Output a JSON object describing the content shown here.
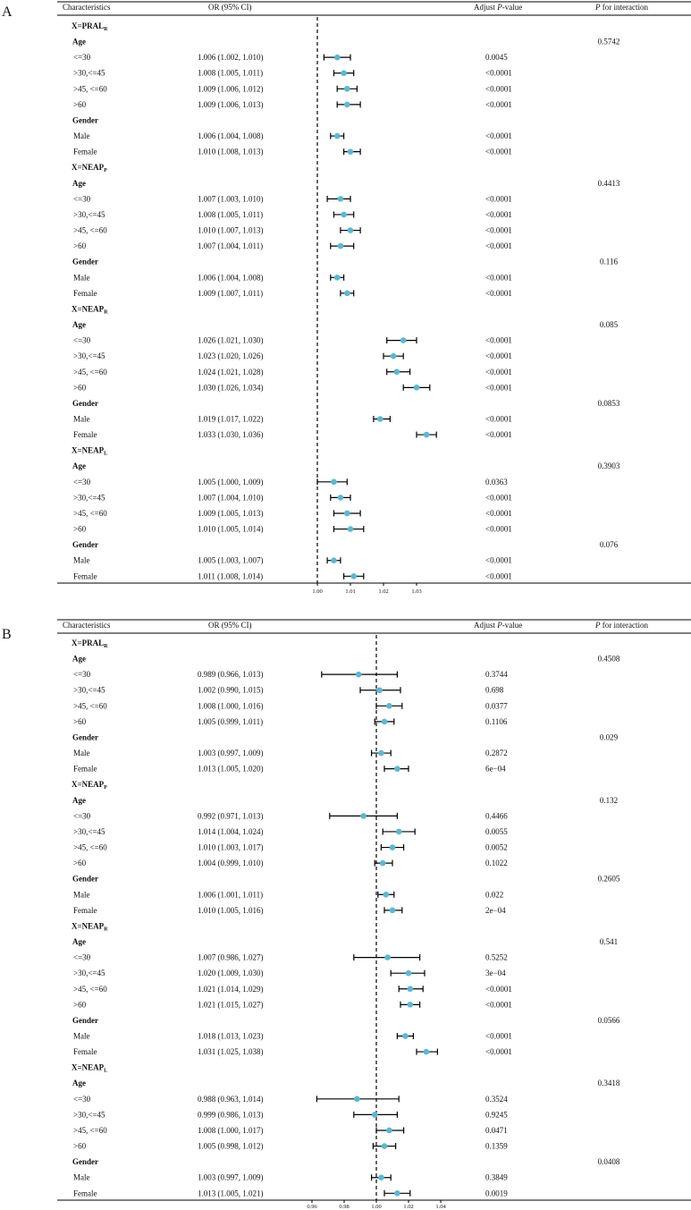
{
  "panels": [
    {
      "label": "A",
      "headers": {
        "characteristics": "Characteristics",
        "or": "OR (95% CI)",
        "pvalue_pre": "Adjust ",
        "pvalue_italic": "P",
        "pvalue_post": "-value",
        "interaction_italic": "P",
        "interaction_post": " for interaction"
      },
      "ticks": [
        "1.00",
        "1.01",
        "1.02",
        "1.03"
      ],
      "rows": [
        {
          "type": "group",
          "base": "X=PRAL",
          "sub": "R"
        },
        {
          "type": "cat",
          "label": "Age",
          "p_int": "0.5742"
        },
        {
          "type": "item",
          "label": "<=30",
          "or": 1.006,
          "lo": 1.002,
          "hi": 1.01,
          "text": "1.006 (1.002, 1.010)",
          "p": "0.0045"
        },
        {
          "type": "item",
          "label": ">30,<=45",
          "or": 1.008,
          "lo": 1.005,
          "hi": 1.011,
          "text": "1.008 (1.005, 1.011)",
          "p": "<0.0001"
        },
        {
          "type": "item",
          "label": ">45, <=60",
          "or": 1.009,
          "lo": 1.006,
          "hi": 1.012,
          "text": "1.009 (1.006, 1.012)",
          "p": "<0.0001"
        },
        {
          "type": "item",
          "label": ">60",
          "or": 1.009,
          "lo": 1.006,
          "hi": 1.013,
          "text": "1.009 (1.006, 1.013)",
          "p": "<0.0001"
        },
        {
          "type": "cat",
          "label": "Gender",
          "p_int": ""
        },
        {
          "type": "item",
          "label": "Male",
          "or": 1.006,
          "lo": 1.004,
          "hi": 1.008,
          "text": "1.006 (1.004, 1.008)",
          "p": "<0.0001"
        },
        {
          "type": "item",
          "label": "Female",
          "or": 1.01,
          "lo": 1.008,
          "hi": 1.013,
          "text": "1.010 (1.008, 1.013)",
          "p": "<0.0001"
        },
        {
          "type": "group",
          "base": "X=NEAP",
          "sub": "P"
        },
        {
          "type": "cat",
          "label": "Age",
          "p_int": "0.4413"
        },
        {
          "type": "item",
          "label": "<=30",
          "or": 1.007,
          "lo": 1.003,
          "hi": 1.01,
          "text": "1.007 (1.003, 1.010)",
          "p": "<0.0001"
        },
        {
          "type": "item",
          "label": ">30,<=45",
          "or": 1.008,
          "lo": 1.005,
          "hi": 1.011,
          "text": "1.008 (1.005, 1.011)",
          "p": "<0.0001"
        },
        {
          "type": "item",
          "label": ">45, <=60",
          "or": 1.01,
          "lo": 1.007,
          "hi": 1.013,
          "text": "1.010 (1.007, 1.013)",
          "p": "<0.0001"
        },
        {
          "type": "item",
          "label": ">60",
          "or": 1.007,
          "lo": 1.004,
          "hi": 1.011,
          "text": "1.007 (1.004, 1.011)",
          "p": "<0.0001"
        },
        {
          "type": "cat",
          "label": "Gender",
          "p_int": "0.116"
        },
        {
          "type": "item",
          "label": "Male",
          "or": 1.006,
          "lo": 1.004,
          "hi": 1.008,
          "text": "1.006 (1.004, 1.008)",
          "p": "<0.0001"
        },
        {
          "type": "item",
          "label": "Female",
          "or": 1.009,
          "lo": 1.007,
          "hi": 1.011,
          "text": "1.009 (1.007, 1.011)",
          "p": "<0.0001"
        },
        {
          "type": "group",
          "base": "X=NEAP",
          "sub": "R"
        },
        {
          "type": "cat",
          "label": "Age",
          "p_int": "0.085"
        },
        {
          "type": "item",
          "label": "<=30",
          "or": 1.026,
          "lo": 1.021,
          "hi": 1.03,
          "text": "1.026 (1.021, 1.030)",
          "p": "<0.0001"
        },
        {
          "type": "item",
          "label": ">30,<=45",
          "or": 1.023,
          "lo": 1.02,
          "hi": 1.026,
          "text": "1.023 (1.020, 1.026)",
          "p": "<0.0001"
        },
        {
          "type": "item",
          "label": ">45, <=60",
          "or": 1.024,
          "lo": 1.021,
          "hi": 1.028,
          "text": "1.024 (1.021, 1.028)",
          "p": "<0.0001"
        },
        {
          "type": "item",
          "label": ">60",
          "or": 1.03,
          "lo": 1.026,
          "hi": 1.034,
          "text": "1.030 (1.026, 1.034)",
          "p": "<0.0001"
        },
        {
          "type": "cat",
          "label": "Gender",
          "p_int": "0.0853"
        },
        {
          "type": "item",
          "label": "Male",
          "or": 1.019,
          "lo": 1.017,
          "hi": 1.022,
          "text": "1.019 (1.017, 1.022)",
          "p": "<0.0001"
        },
        {
          "type": "item",
          "label": "Female",
          "or": 1.033,
          "lo": 1.03,
          "hi": 1.036,
          "text": "1.033 (1.030, 1.036)",
          "p": "<0.0001"
        },
        {
          "type": "group",
          "base": "X=NEAP",
          "sub": "L"
        },
        {
          "type": "cat",
          "label": "Age",
          "p_int": "0.3903"
        },
        {
          "type": "item",
          "label": "<=30",
          "or": 1.005,
          "lo": 1.0,
          "hi": 1.009,
          "text": "1.005 (1.000, 1.009)",
          "p": "0.0363"
        },
        {
          "type": "item",
          "label": ">30,<=45",
          "or": 1.007,
          "lo": 1.004,
          "hi": 1.01,
          "text": "1.007 (1.004, 1.010)",
          "p": "<0.0001"
        },
        {
          "type": "item",
          "label": ">45, <=60",
          "or": 1.009,
          "lo": 1.005,
          "hi": 1.013,
          "text": "1.009 (1.005, 1.013)",
          "p": "<0.0001"
        },
        {
          "type": "item",
          "label": ">60",
          "or": 1.01,
          "lo": 1.005,
          "hi": 1.014,
          "text": "1.010 (1.005, 1.014)",
          "p": "<0.0001"
        },
        {
          "type": "cat",
          "label": "Gender",
          "p_int": "0.076"
        },
        {
          "type": "item",
          "label": "Male",
          "or": 1.005,
          "lo": 1.003,
          "hi": 1.007,
          "text": "1.005 (1.003, 1.007)",
          "p": "<0.0001"
        },
        {
          "type": "item",
          "label": "Female",
          "or": 1.011,
          "lo": 1.008,
          "hi": 1.014,
          "text": "1.011 (1.008, 1.014)",
          "p": "<0.0001"
        }
      ]
    },
    {
      "label": "B",
      "headers": {
        "characteristics": "Characteristics",
        "or": "OR (95% CI)",
        "pvalue_pre": "Adjust ",
        "pvalue_italic": "P",
        "pvalue_post": "-value",
        "interaction_italic": "P",
        "interaction_post": " for interaction"
      },
      "ticks": [
        "0.96",
        "0.98",
        "1.00",
        "1.02",
        "1.04"
      ],
      "rows": [
        {
          "type": "group",
          "base": "X=PRAL",
          "sub": "R"
        },
        {
          "type": "cat",
          "label": "Age",
          "p_int": "0.4508"
        },
        {
          "type": "item",
          "label": "<=30",
          "or": 0.989,
          "lo": 0.966,
          "hi": 1.013,
          "text": "0.989 (0.966, 1.013)",
          "p": "0.3744"
        },
        {
          "type": "item",
          "label": ">30,<=45",
          "or": 1.002,
          "lo": 0.99,
          "hi": 1.015,
          "text": "1.002 (0.990, 1.015)",
          "p": "0.698"
        },
        {
          "type": "item",
          "label": ">45, <=60",
          "or": 1.008,
          "lo": 1.0,
          "hi": 1.016,
          "text": "1.008 (1.000, 1.016)",
          "p": "0.0377"
        },
        {
          "type": "item",
          "label": ">60",
          "or": 1.005,
          "lo": 0.999,
          "hi": 1.011,
          "text": "1.005 (0.999, 1.011)",
          "p": "0.1106"
        },
        {
          "type": "cat",
          "label": "Gender",
          "p_int": "0.029"
        },
        {
          "type": "item",
          "label": "Male",
          "or": 1.003,
          "lo": 0.997,
          "hi": 1.009,
          "text": "1.003 (0.997, 1.009)",
          "p": "0.2872"
        },
        {
          "type": "item",
          "label": "Female",
          "or": 1.013,
          "lo": 1.005,
          "hi": 1.02,
          "text": "1.013 (1.005, 1.020)",
          "p": "6e−04"
        },
        {
          "type": "group",
          "base": "X=NEAP",
          "sub": "P"
        },
        {
          "type": "cat",
          "label": "Age",
          "p_int": "0.132"
        },
        {
          "type": "item",
          "label": "<=30",
          "or": 0.992,
          "lo": 0.971,
          "hi": 1.013,
          "text": "0.992 (0.971, 1.013)",
          "p": "0.4466"
        },
        {
          "type": "item",
          "label": ">30,<=45",
          "or": 1.014,
          "lo": 1.004,
          "hi": 1.024,
          "text": "1.014 (1.004, 1.024)",
          "p": "0.0055"
        },
        {
          "type": "item",
          "label": ">45, <=60",
          "or": 1.01,
          "lo": 1.003,
          "hi": 1.017,
          "text": "1.010 (1.003, 1.017)",
          "p": "0.0052"
        },
        {
          "type": "item",
          "label": ">60",
          "or": 1.004,
          "lo": 0.999,
          "hi": 1.01,
          "text": "1.004 (0.999, 1.010)",
          "p": "0.1022"
        },
        {
          "type": "cat",
          "label": "Gender",
          "p_int": "0.2605"
        },
        {
          "type": "item",
          "label": "Male",
          "or": 1.006,
          "lo": 1.001,
          "hi": 1.011,
          "text": "1.006 (1.001, 1.011)",
          "p": "0.022"
        },
        {
          "type": "item",
          "label": "Female",
          "or": 1.01,
          "lo": 1.005,
          "hi": 1.016,
          "text": "1.010 (1.005, 1.016)",
          "p": "2e−04"
        },
        {
          "type": "group",
          "base": "X=NEAP",
          "sub": "R"
        },
        {
          "type": "cat",
          "label": "Age",
          "p_int": "0.541"
        },
        {
          "type": "item",
          "label": "<=30",
          "or": 1.007,
          "lo": 0.986,
          "hi": 1.027,
          "text": "1.007 (0.986, 1.027)",
          "p": "0.5252"
        },
        {
          "type": "item",
          "label": ">30,<=45",
          "or": 1.02,
          "lo": 1.009,
          "hi": 1.03,
          "text": "1.020 (1.009, 1.030)",
          "p": "3e−04"
        },
        {
          "type": "item",
          "label": ">45, <=60",
          "or": 1.021,
          "lo": 1.014,
          "hi": 1.029,
          "text": "1.021 (1.014, 1.029)",
          "p": "<0.0001"
        },
        {
          "type": "item",
          "label": ">60",
          "or": 1.021,
          "lo": 1.015,
          "hi": 1.027,
          "text": "1.021 (1.015, 1.027)",
          "p": "<0.0001"
        },
        {
          "type": "cat",
          "label": "Gender",
          "p_int": "0.0566"
        },
        {
          "type": "item",
          "label": "Male",
          "or": 1.018,
          "lo": 1.013,
          "hi": 1.023,
          "text": "1.018 (1.013, 1.023)",
          "p": "<0.0001"
        },
        {
          "type": "item",
          "label": "Female",
          "or": 1.031,
          "lo": 1.025,
          "hi": 1.038,
          "text": "1.031 (1.025, 1.038)",
          "p": "<0.0001"
        },
        {
          "type": "group",
          "base": "X=NEAP",
          "sub": "L"
        },
        {
          "type": "cat",
          "label": "Age",
          "p_int": "0.3418"
        },
        {
          "type": "item",
          "label": "<=30",
          "or": 0.988,
          "lo": 0.963,
          "hi": 1.014,
          "text": "0.988 (0.963, 1.014)",
          "p": "0.3524"
        },
        {
          "type": "item",
          "label": ">30,<=45",
          "or": 0.999,
          "lo": 0.986,
          "hi": 1.013,
          "text": "0.999 (0.986, 1.013)",
          "p": "0.9245"
        },
        {
          "type": "item",
          "label": ">45, <=60",
          "or": 1.008,
          "lo": 1.0,
          "hi": 1.017,
          "text": "1.008 (1.000, 1.017)",
          "p": "0.0471"
        },
        {
          "type": "item",
          "label": ">60",
          "or": 1.005,
          "lo": 0.998,
          "hi": 1.012,
          "text": "1.005 (0.998, 1.012)",
          "p": "0.1359"
        },
        {
          "type": "cat",
          "label": "Gender",
          "p_int": "0.0408"
        },
        {
          "type": "item",
          "label": "Male",
          "or": 1.003,
          "lo": 0.997,
          "hi": 1.009,
          "text": "1.003 (0.997, 1.009)",
          "p": "0.3849"
        },
        {
          "type": "item",
          "label": "Female",
          "or": 1.013,
          "lo": 1.005,
          "hi": 1.021,
          "text": "1.013 (1.005, 1.021)",
          "p": "0.0019"
        }
      ]
    }
  ],
  "colors": {
    "point": "#5bb8d4",
    "line": "#000000",
    "text": "#111111"
  },
  "chart_data": [
    {
      "type": "forest",
      "title": "A",
      "xlabel": "OR (95% CI)",
      "xticks": [
        1.0,
        1.01,
        1.02,
        1.03
      ],
      "reference_line": 1.0,
      "series": [
        {
          "name": "X=PRAL_R",
          "subgroups": [
            "<=30",
            ">30,<=45",
            ">45, <=60",
            ">60",
            "Male",
            "Female"
          ],
          "or": [
            1.006,
            1.008,
            1.009,
            1.009,
            1.006,
            1.01
          ],
          "lower": [
            1.002,
            1.005,
            1.006,
            1.006,
            1.004,
            1.008
          ],
          "upper": [
            1.01,
            1.011,
            1.012,
            1.013,
            1.008,
            1.013
          ]
        },
        {
          "name": "X=NEAP_P",
          "subgroups": [
            "<=30",
            ">30,<=45",
            ">45, <=60",
            ">60",
            "Male",
            "Female"
          ],
          "or": [
            1.007,
            1.008,
            1.01,
            1.007,
            1.006,
            1.009
          ],
          "lower": [
            1.003,
            1.005,
            1.007,
            1.004,
            1.004,
            1.007
          ],
          "upper": [
            1.01,
            1.011,
            1.013,
            1.011,
            1.008,
            1.011
          ]
        },
        {
          "name": "X=NEAP_R",
          "subgroups": [
            "<=30",
            ">30,<=45",
            ">45, <=60",
            ">60",
            "Male",
            "Female"
          ],
          "or": [
            1.026,
            1.023,
            1.024,
            1.03,
            1.019,
            1.033
          ],
          "lower": [
            1.021,
            1.02,
            1.021,
            1.026,
            1.017,
            1.03
          ],
          "upper": [
            1.03,
            1.026,
            1.028,
            1.034,
            1.022,
            1.036
          ]
        },
        {
          "name": "X=NEAP_L",
          "subgroups": [
            "<=30",
            ">30,<=45",
            ">45, <=60",
            ">60",
            "Male",
            "Female"
          ],
          "or": [
            1.005,
            1.007,
            1.009,
            1.01,
            1.005,
            1.011
          ],
          "lower": [
            1.0,
            1.004,
            1.005,
            1.005,
            1.003,
            1.008
          ],
          "upper": [
            1.009,
            1.01,
            1.013,
            1.014,
            1.007,
            1.014
          ]
        }
      ]
    },
    {
      "type": "forest",
      "title": "B",
      "xlabel": "OR (95% CI)",
      "xticks": [
        0.96,
        0.98,
        1.0,
        1.02,
        1.04
      ],
      "reference_line": 1.0,
      "series": [
        {
          "name": "X=PRAL_R",
          "subgroups": [
            "<=30",
            ">30,<=45",
            ">45, <=60",
            ">60",
            "Male",
            "Female"
          ],
          "or": [
            0.989,
            1.002,
            1.008,
            1.005,
            1.003,
            1.013
          ],
          "lower": [
            0.966,
            0.99,
            1.0,
            0.999,
            0.997,
            1.005
          ],
          "upper": [
            1.013,
            1.015,
            1.016,
            1.011,
            1.009,
            1.02
          ]
        },
        {
          "name": "X=NEAP_P",
          "subgroups": [
            "<=30",
            ">30,<=45",
            ">45, <=60",
            ">60",
            "Male",
            "Female"
          ],
          "or": [
            0.992,
            1.014,
            1.01,
            1.004,
            1.006,
            1.01
          ],
          "lower": [
            0.971,
            1.004,
            1.003,
            0.999,
            1.001,
            1.005
          ],
          "upper": [
            1.013,
            1.024,
            1.017,
            1.01,
            1.011,
            1.016
          ]
        },
        {
          "name": "X=NEAP_R",
          "subgroups": [
            "<=30",
            ">30,<=45",
            ">45, <=60",
            ">60",
            "Male",
            "Female"
          ],
          "or": [
            1.007,
            1.02,
            1.021,
            1.021,
            1.018,
            1.031
          ],
          "lower": [
            0.986,
            1.009,
            1.014,
            1.015,
            1.013,
            1.025
          ],
          "upper": [
            1.027,
            1.03,
            1.029,
            1.027,
            1.023,
            1.038
          ]
        },
        {
          "name": "X=NEAP_L",
          "subgroups": [
            "<=30",
            ">30,<=45",
            ">45, <=60",
            ">60",
            "Male",
            "Female"
          ],
          "or": [
            0.988,
            0.999,
            1.008,
            1.005,
            1.003,
            1.013
          ],
          "lower": [
            0.963,
            0.986,
            1.0,
            0.998,
            0.997,
            1.005
          ],
          "upper": [
            1.014,
            1.013,
            1.017,
            1.012,
            1.009,
            1.021
          ]
        }
      ]
    }
  ]
}
